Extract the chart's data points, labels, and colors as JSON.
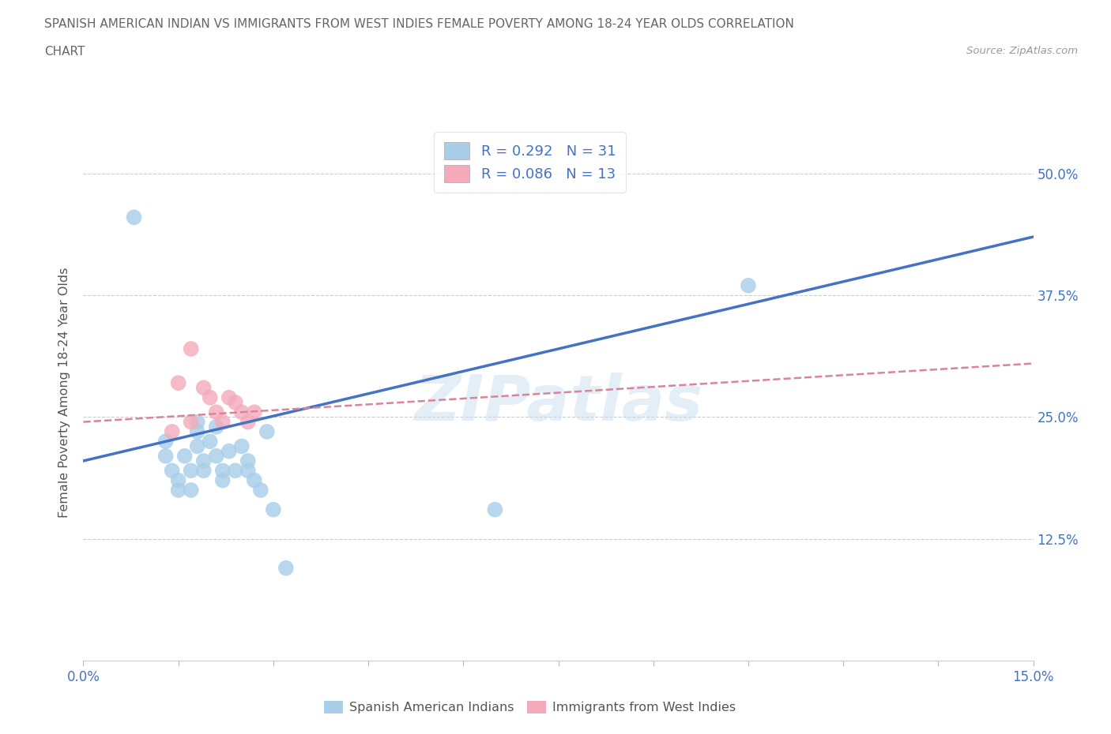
{
  "title_line1": "SPANISH AMERICAN INDIAN VS IMMIGRANTS FROM WEST INDIES FEMALE POVERTY AMONG 18-24 YEAR OLDS CORRELATION",
  "title_line2": "CHART",
  "source_text": "Source: ZipAtlas.com",
  "ylabel": "Female Poverty Among 18-24 Year Olds",
  "xlim": [
    0.0,
    0.15
  ],
  "ylim": [
    0.0,
    0.55
  ],
  "xtick_positions": [
    0.0,
    0.015,
    0.03,
    0.045,
    0.06,
    0.075,
    0.09,
    0.105,
    0.12,
    0.135,
    0.15
  ],
  "xtick_labels": [
    "0.0%",
    "",
    "",
    "",
    "",
    "",
    "",
    "",
    "",
    "",
    "15.0%"
  ],
  "ytick_positions": [
    0.0,
    0.125,
    0.25,
    0.375,
    0.5
  ],
  "ytick_labels_right": [
    "",
    "12.5%",
    "25.0%",
    "37.5%",
    "50.0%"
  ],
  "R1": 0.292,
  "N1": 31,
  "R2": 0.086,
  "N2": 13,
  "color_blue": "#A8CEE8",
  "color_pink": "#F4AABB",
  "color_line_blue": "#4472C4",
  "color_line_pink": "#D9849A",
  "color_grid": "#CCCCCC",
  "color_title": "#666666",
  "color_legend_text": "#4472C4",
  "color_axis_text": "#4472C4",
  "watermark": "ZIPatlas",
  "legend_label1": "Spanish American Indians",
  "legend_label2": "Immigrants from West Indies",
  "blue_scatter_x": [
    0.013,
    0.013,
    0.014,
    0.015,
    0.015,
    0.016,
    0.017,
    0.017,
    0.018,
    0.018,
    0.018,
    0.019,
    0.019,
    0.02,
    0.021,
    0.021,
    0.022,
    0.022,
    0.023,
    0.024,
    0.025,
    0.026,
    0.026,
    0.027,
    0.028,
    0.029,
    0.03,
    0.032,
    0.065,
    0.008,
    0.105
  ],
  "blue_scatter_y": [
    0.225,
    0.21,
    0.195,
    0.185,
    0.175,
    0.21,
    0.195,
    0.175,
    0.245,
    0.235,
    0.22,
    0.195,
    0.205,
    0.225,
    0.24,
    0.21,
    0.195,
    0.185,
    0.215,
    0.195,
    0.22,
    0.205,
    0.195,
    0.185,
    0.175,
    0.235,
    0.155,
    0.095,
    0.155,
    0.455,
    0.385
  ],
  "pink_scatter_x": [
    0.014,
    0.015,
    0.017,
    0.017,
    0.019,
    0.02,
    0.021,
    0.022,
    0.023,
    0.024,
    0.025,
    0.026,
    0.027
  ],
  "pink_scatter_y": [
    0.235,
    0.285,
    0.32,
    0.245,
    0.28,
    0.27,
    0.255,
    0.245,
    0.27,
    0.265,
    0.255,
    0.245,
    0.255
  ],
  "blue_line": [
    0.0,
    0.15,
    0.205,
    0.435
  ],
  "pink_line": [
    0.0,
    0.15,
    0.245,
    0.305
  ]
}
